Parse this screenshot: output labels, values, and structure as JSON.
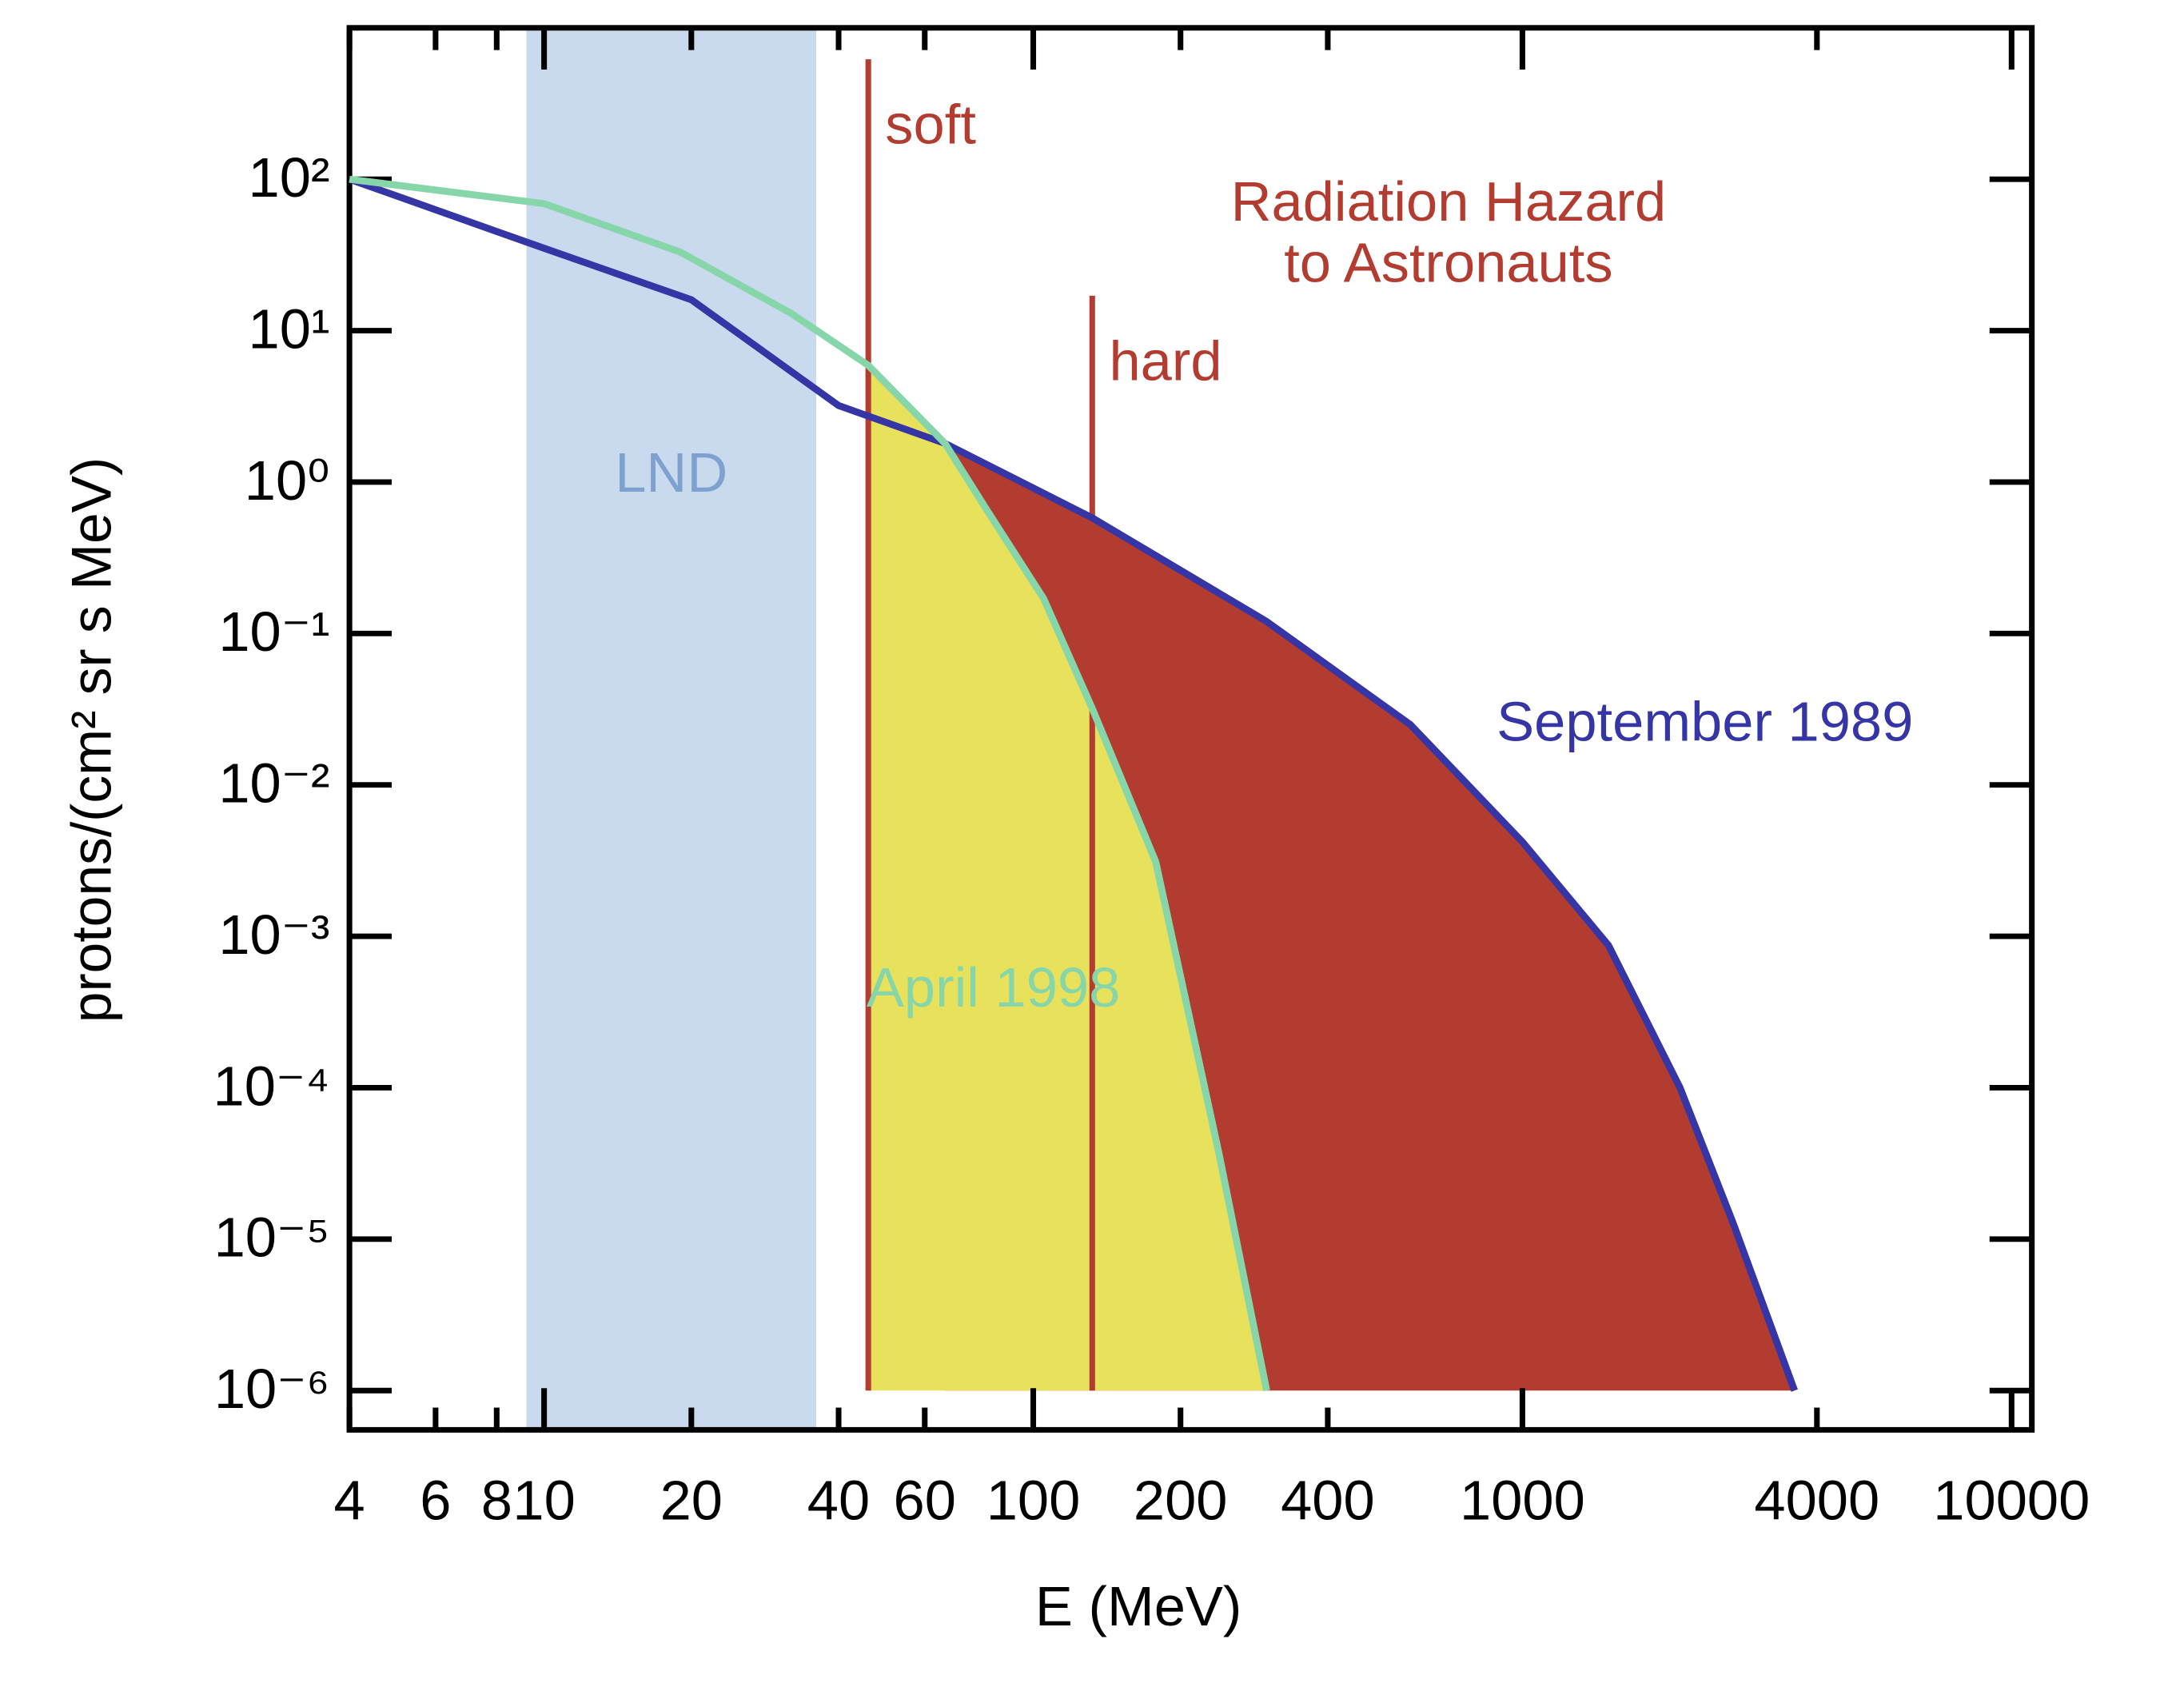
{
  "chart_data": {
    "type": "line",
    "xlabel": "E (MeV)",
    "ylabel": "protons/(cm² sr s MeV)",
    "xscale": "log",
    "yscale": "log",
    "xlim": [
      4,
      11000
    ],
    "ylim": [
      5.5e-07,
      1000
    ],
    "xticks": [
      4,
      6,
      8,
      10,
      20,
      40,
      60,
      100,
      200,
      400,
      1000,
      4000,
      10000
    ],
    "yticks": [
      {
        "value": 100,
        "label": "10²"
      },
      {
        "value": 10,
        "label": "10¹"
      },
      {
        "value": 1,
        "label": "10⁰"
      },
      {
        "value": 0.1,
        "label": "10⁻¹"
      },
      {
        "value": 0.01,
        "label": "10⁻²"
      },
      {
        "value": 0.001,
        "label": "10⁻³"
      },
      {
        "value": 0.0001,
        "label": "10⁻⁴"
      },
      {
        "value": 1e-05,
        "label": "10⁻⁵"
      },
      {
        "value": 1e-06,
        "label": "10⁻⁶"
      }
    ],
    "series": [
      {
        "name": "September 1989",
        "color": "#3535a5",
        "x": [
          4,
          10,
          20,
          40,
          66,
          132,
          300,
          590,
          1000,
          1500,
          2100,
          2700,
          3600
        ],
        "values": [
          100,
          35,
          16,
          3.2,
          1.8,
          0.58,
          0.12,
          0.025,
          0.0042,
          0.00087,
          0.0001,
          1.26e-05,
          1e-06
        ]
      },
      {
        "name": "April 1998",
        "color": "#86d6aa",
        "x": [
          4,
          10,
          19,
          32,
          46,
          66,
          80,
          105,
          132,
          178,
          240,
          300
        ],
        "values": [
          100,
          69,
          33,
          13,
          5.9,
          1.8,
          0.67,
          0.17,
          0.032,
          0.0031,
          3.6e-05,
          1e-06
        ]
      }
    ],
    "regions": [
      {
        "series": 0,
        "from": 66,
        "floor": 1e-06,
        "color": "#b33c30"
      },
      {
        "series": 1,
        "from": 46,
        "floor": 1e-06,
        "color": "#e8e15c"
      }
    ],
    "band": {
      "label": "LND",
      "x": [
        9.2,
        36
      ],
      "color": "#c9d9ee",
      "text_color": "#7ea2cf"
    },
    "markers": [
      {
        "label": "soft",
        "x": 46,
        "y": [
          1e-06,
          620
        ],
        "color": "#b33c30"
      },
      {
        "label": "hard",
        "x": 132,
        "y": [
          1e-06,
          17
        ],
        "color": "#b33c30"
      }
    ],
    "annotation": {
      "lines": [
        "Radiation Hazard",
        "to Astronauts"
      ],
      "color": "#b33c30"
    }
  }
}
